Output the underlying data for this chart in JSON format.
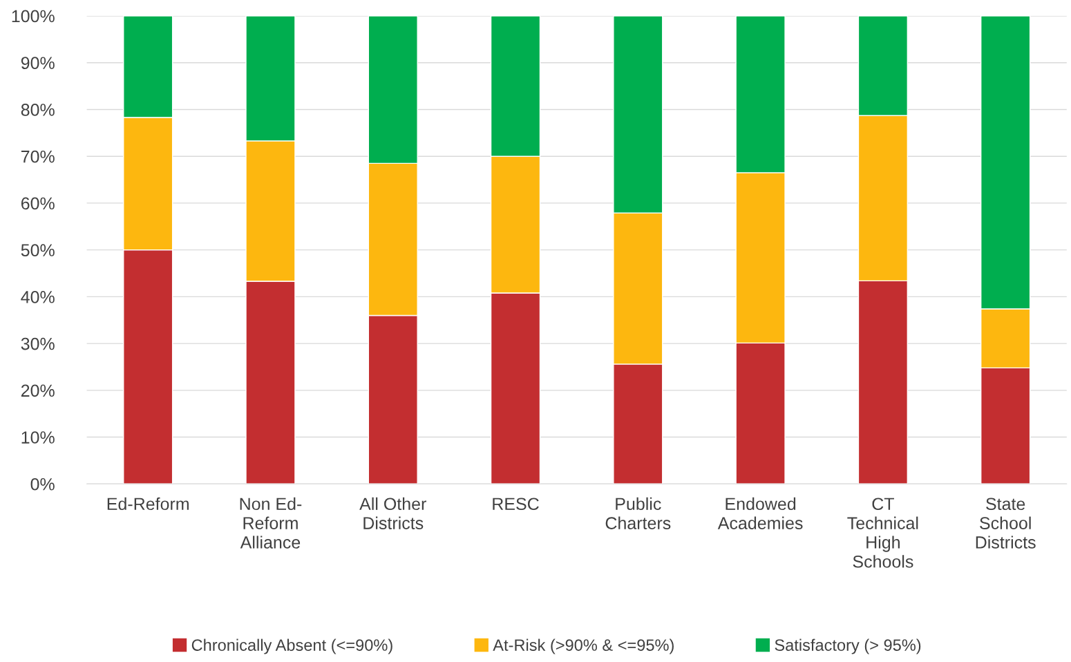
{
  "chart_data": {
    "type": "bar",
    "stacked": true,
    "categories": [
      "Ed-Reform",
      "Non Ed-\nReform\nAlliance",
      "All Other\nDistricts",
      "RESC",
      "Public\nCharters",
      "Endowed\nAcademies",
      "CT\nTechnical\nHigh\nSchools",
      "State\nSchool\nDistricts"
    ],
    "series": [
      {
        "name": "Chronically Absent (<=90%)",
        "color": "#c32e30",
        "values": [
          50,
          43.3,
          36,
          40.8,
          25.6,
          30.1,
          43.4,
          24.8
        ]
      },
      {
        "name": "At-Risk (>90% & <=95%)",
        "color": "#fdb70f",
        "values": [
          28.3,
          30,
          32.5,
          29.2,
          32.3,
          36.4,
          35.3,
          12.6
        ]
      },
      {
        "name": "Satisfactory (> 95%)",
        "color": "#00ae4f",
        "values": [
          21.7,
          26.7,
          31.5,
          30,
          42.1,
          33.5,
          21.3,
          62.6
        ]
      }
    ],
    "ylim": [
      0,
      100
    ],
    "yticks": [
      {
        "value": 0,
        "label": "0%"
      },
      {
        "value": 10,
        "label": "10%"
      },
      {
        "value": 20,
        "label": "20%"
      },
      {
        "value": 30,
        "label": "30%"
      },
      {
        "value": 40,
        "label": "40%"
      },
      {
        "value": 50,
        "label": "50%"
      },
      {
        "value": 60,
        "label": "60%"
      },
      {
        "value": 70,
        "label": "70%"
      },
      {
        "value": 80,
        "label": "80%"
      },
      {
        "value": 90,
        "label": "90%"
      },
      {
        "value": 100,
        "label": "100%"
      }
    ],
    "grid": "y",
    "legend": "bottom"
  }
}
